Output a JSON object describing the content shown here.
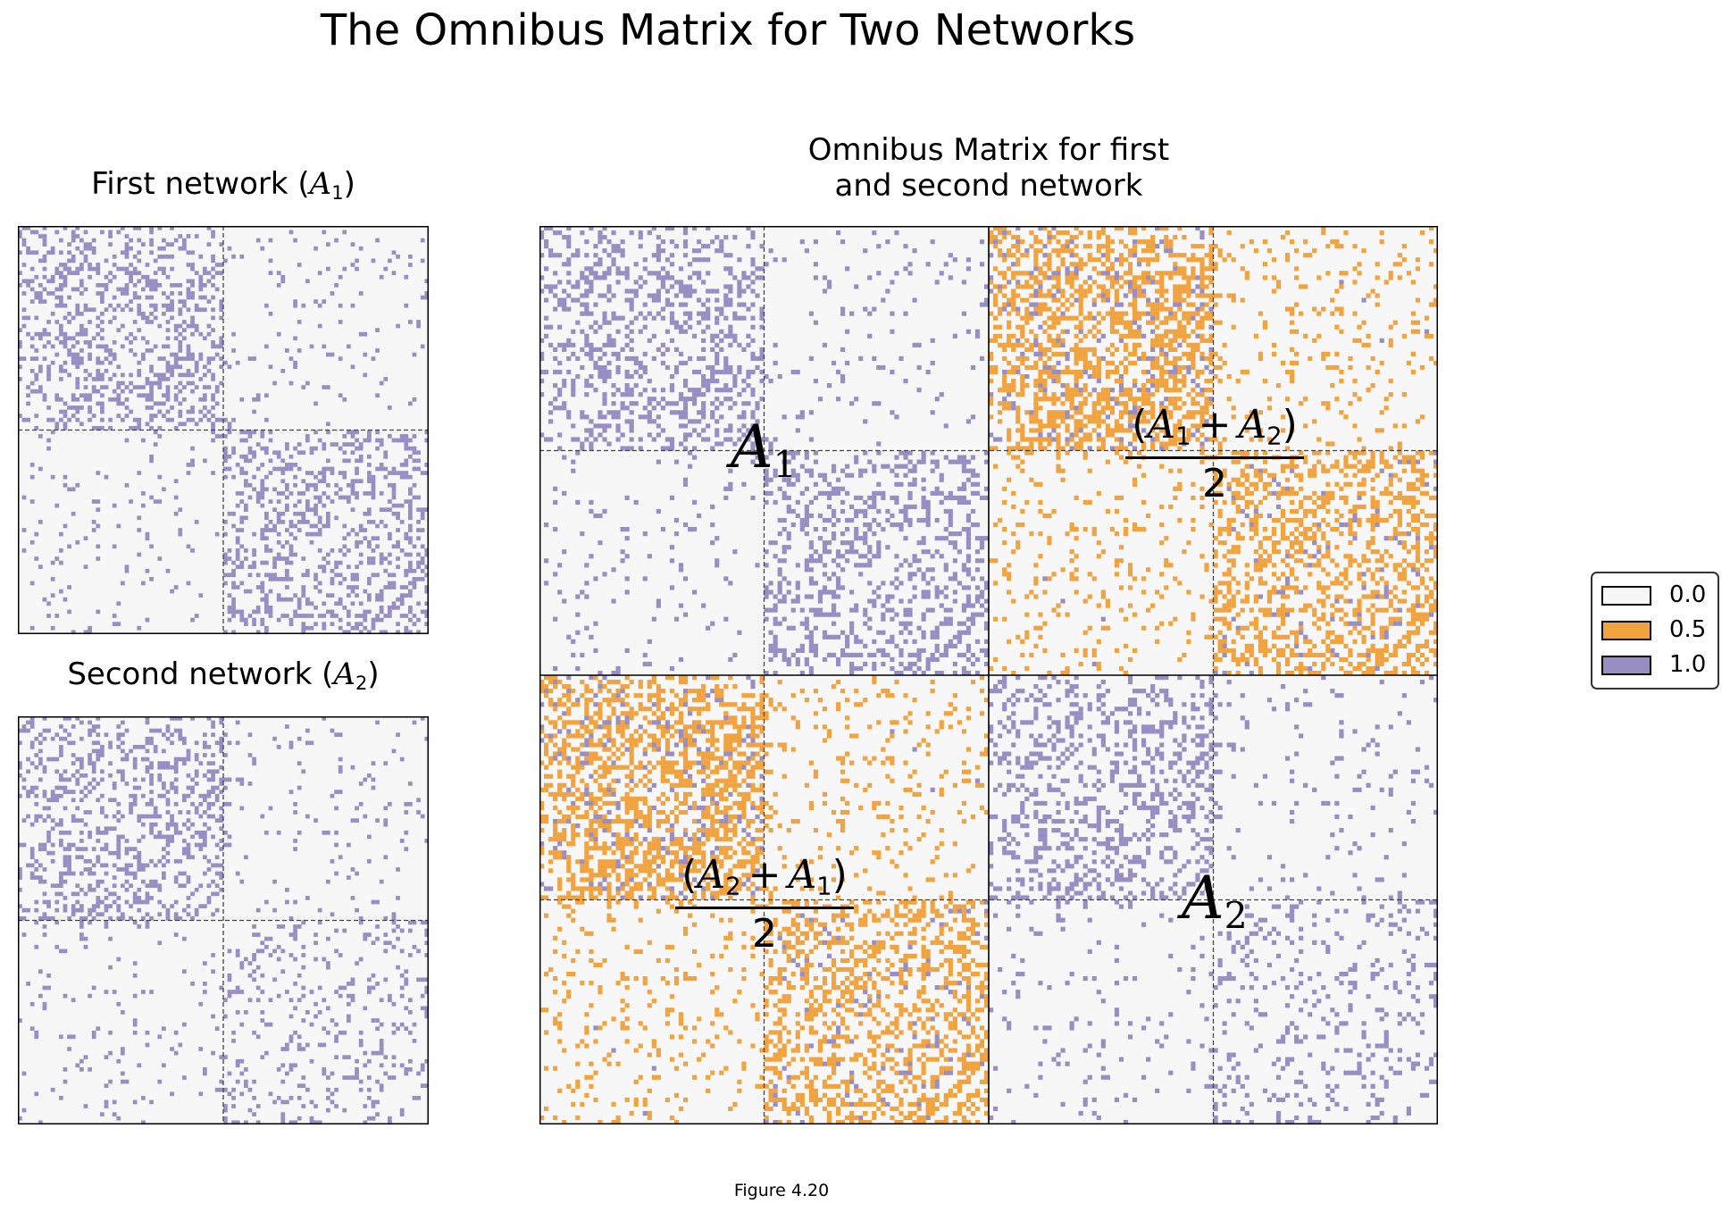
{
  "title": "The Omnibus Matrix for Two Networks",
  "caption": "Figure 4.20",
  "colors": {
    "zero": "#f7f7f7",
    "half": "#f1a340",
    "one": "#998ec3"
  },
  "panels": {
    "first": {
      "title_text": "First network (",
      "title_sym": "A",
      "title_sub": "1",
      "title_close": ")"
    },
    "second": {
      "title_text": "Second network (",
      "title_sym": "A",
      "title_sub": "2",
      "title_close": ")"
    },
    "omnibus": {
      "title_line1": "Omnibus Matrix for first",
      "title_line2": "and second network"
    }
  },
  "block_labels": {
    "top_left": {
      "sym": "A",
      "sub": "1"
    },
    "bottom_right": {
      "sym": "A",
      "sub": "2"
    },
    "top_right": {
      "num_open": "(",
      "a": "A",
      "a_sub": "1",
      "op": "+",
      "b": "A",
      "b_sub": "2",
      "num_close": ")",
      "den": "2"
    },
    "bottom_left": {
      "num_open": "(",
      "a": "A",
      "a_sub": "2",
      "op": "+",
      "b": "A",
      "b_sub": "1",
      "num_close": ")",
      "den": "2"
    }
  },
  "legend": [
    {
      "label": "0.0",
      "color": "#f7f7f7"
    },
    {
      "label": "0.5",
      "color": "#f1a340"
    },
    {
      "label": "1.0",
      "color": "#998ec3"
    }
  ],
  "chart_data": [
    {
      "type": "heatmap",
      "title": "First network (A1)",
      "n_nodes": 100,
      "communities": 2,
      "block_probabilities": [
        [
          0.3,
          0.05
        ],
        [
          0.05,
          0.3
        ]
      ],
      "values": [
        0,
        1
      ],
      "grid": false
    },
    {
      "type": "heatmap",
      "title": "Second network (A2)",
      "n_nodes": 100,
      "communities": 2,
      "block_probabilities": [
        [
          0.3,
          0.05
        ],
        [
          0.05,
          0.15
        ]
      ],
      "values": [
        0,
        1
      ],
      "grid": false
    },
    {
      "type": "heatmap",
      "title": "Omnibus Matrix for first and second network",
      "n_nodes": 200,
      "blocks": [
        [
          "A1",
          "(A1 + A2)/2"
        ],
        [
          "(A2 + A1)/2",
          "A2"
        ]
      ],
      "values": [
        0,
        0.5,
        1
      ],
      "grid": false
    }
  ]
}
